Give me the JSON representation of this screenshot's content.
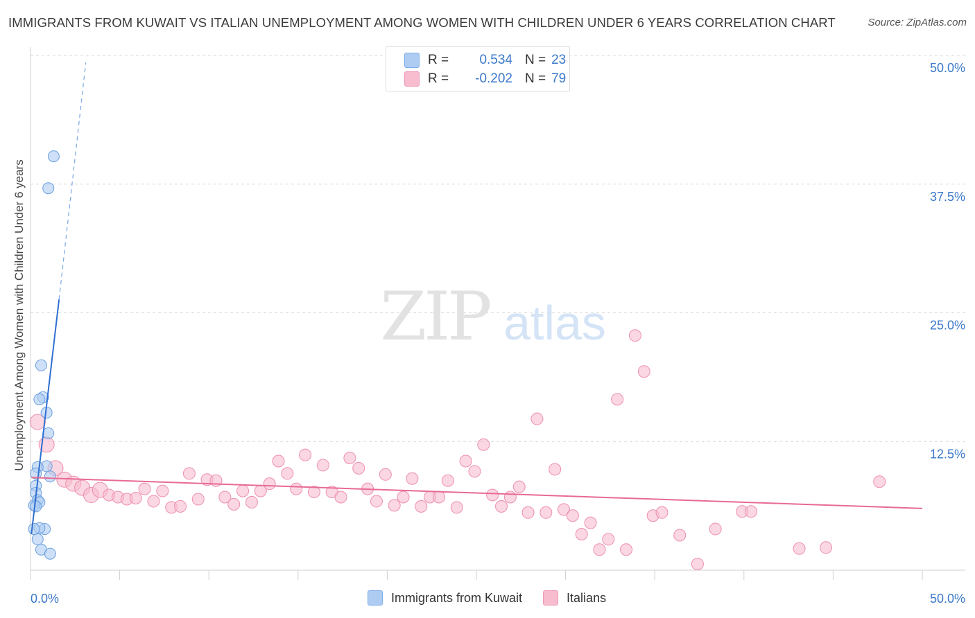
{
  "title": "IMMIGRANTS FROM KUWAIT VS ITALIAN UNEMPLOYMENT AMONG WOMEN WITH CHILDREN UNDER 6 YEARS CORRELATION CHART",
  "source": "Source: ZipAtlas.com",
  "watermark": {
    "zip": "ZIP",
    "atlas": "atlas"
  },
  "legend": {
    "rows": [
      {
        "r_label": "R =",
        "r_value": "0.534",
        "n_label": "N =",
        "n_value": "23",
        "color": "#aecbf2"
      },
      {
        "r_label": "R =",
        "r_value": "-0.202",
        "n_label": "N =",
        "n_value": "79",
        "color": "#f7bcce"
      }
    ]
  },
  "bottom_legend": [
    {
      "label": "Immigrants from Kuwait",
      "color": "#aecbf2"
    },
    {
      "label": "Italians",
      "color": "#f7bcce"
    }
  ],
  "colors": {
    "blue_fill": "#aecbf2",
    "blue_stroke": "#6a9fe0",
    "blue_line": "#2f6fd0",
    "pink_fill": "#f7bcce",
    "pink_stroke": "#ee8fae",
    "pink_line": "#e86a94",
    "tick_text": "#3a78c9",
    "grid": "#d8d8d8"
  },
  "chart_data": {
    "type": "scatter",
    "title": "IMMIGRANTS FROM KUWAIT VS ITALIAN UNEMPLOYMENT AMONG WOMEN WITH CHILDREN UNDER 6 YEARS CORRELATION CHART",
    "xlabel": "",
    "ylabel": "Unemployment Among Women with Children Under 6 years",
    "xlim": [
      0,
      50
    ],
    "ylim": [
      0,
      50
    ],
    "x_tick_labels": [
      "0.0%",
      "50.0%"
    ],
    "y_tick_labels": [
      "12.5%",
      "25.0%",
      "37.5%",
      "50.0%"
    ],
    "y_tick_values": [
      12.5,
      25,
      37.5,
      50
    ],
    "grid": true,
    "legend_position": "top-center",
    "series": [
      {
        "name": "Immigrants from Kuwait",
        "R": 0.534,
        "N": 23,
        "trend": {
          "x0": 0.05,
          "y0": 3.5,
          "x1": 1.6,
          "y1": 26.3,
          "dash_x1": 3.1,
          "dash_y1": 49.3
        },
        "points": [
          [
            1.3,
            40.2
          ],
          [
            1.0,
            37.1
          ],
          [
            0.6,
            19.9
          ],
          [
            0.7,
            16.8
          ],
          [
            0.5,
            16.6
          ],
          [
            0.9,
            15.3
          ],
          [
            1.0,
            13.3
          ],
          [
            0.9,
            10.1
          ],
          [
            0.4,
            10.0
          ],
          [
            1.1,
            9.1
          ],
          [
            0.3,
            9.4
          ],
          [
            0.3,
            8.2
          ],
          [
            0.3,
            7.5
          ],
          [
            0.4,
            6.8
          ],
          [
            0.5,
            6.6
          ],
          [
            0.2,
            6.3
          ],
          [
            0.3,
            6.2
          ],
          [
            0.8,
            4.0
          ],
          [
            0.5,
            4.1
          ],
          [
            0.4,
            3.0
          ],
          [
            0.6,
            2.0
          ],
          [
            1.1,
            1.6
          ],
          [
            0.2,
            4.0
          ]
        ]
      },
      {
        "name": "Italians",
        "R": -0.202,
        "N": 79,
        "trend": {
          "x0": 0.05,
          "y0": 9.0,
          "x1": 50,
          "y1": 6.0
        },
        "points": [
          [
            0.4,
            14.4
          ],
          [
            0.9,
            12.2
          ],
          [
            1.4,
            9.9
          ],
          [
            1.9,
            8.8
          ],
          [
            2.4,
            8.4
          ],
          [
            2.9,
            8.0
          ],
          [
            3.4,
            7.3
          ],
          [
            3.9,
            7.8
          ],
          [
            4.4,
            7.3
          ],
          [
            4.9,
            7.1
          ],
          [
            5.4,
            6.9
          ],
          [
            5.9,
            7.0
          ],
          [
            6.4,
            7.9
          ],
          [
            6.9,
            6.7
          ],
          [
            7.4,
            7.7
          ],
          [
            7.9,
            6.1
          ],
          [
            8.4,
            6.2
          ],
          [
            8.9,
            9.4
          ],
          [
            9.4,
            6.9
          ],
          [
            9.9,
            8.8
          ],
          [
            10.4,
            8.7
          ],
          [
            10.9,
            7.1
          ],
          [
            11.4,
            6.4
          ],
          [
            11.9,
            7.7
          ],
          [
            12.4,
            6.6
          ],
          [
            12.9,
            7.7
          ],
          [
            13.4,
            8.4
          ],
          [
            13.9,
            10.6
          ],
          [
            14.4,
            9.4
          ],
          [
            14.9,
            7.9
          ],
          [
            15.4,
            11.2
          ],
          [
            15.9,
            7.6
          ],
          [
            16.4,
            10.2
          ],
          [
            16.9,
            7.6
          ],
          [
            17.4,
            7.1
          ],
          [
            17.9,
            10.9
          ],
          [
            18.4,
            9.9
          ],
          [
            18.9,
            7.9
          ],
          [
            19.4,
            6.7
          ],
          [
            19.9,
            9.3
          ],
          [
            20.4,
            6.3
          ],
          [
            20.9,
            7.1
          ],
          [
            21.4,
            8.9
          ],
          [
            21.9,
            6.2
          ],
          [
            22.4,
            7.1
          ],
          [
            22.9,
            7.1
          ],
          [
            23.4,
            8.7
          ],
          [
            23.9,
            6.1
          ],
          [
            24.4,
            10.6
          ],
          [
            24.9,
            9.6
          ],
          [
            25.4,
            12.2
          ],
          [
            25.9,
            7.3
          ],
          [
            26.4,
            6.2
          ],
          [
            26.9,
            7.1
          ],
          [
            27.4,
            8.1
          ],
          [
            27.9,
            5.6
          ],
          [
            28.4,
            14.7
          ],
          [
            28.9,
            5.6
          ],
          [
            29.4,
            9.8
          ],
          [
            29.9,
            5.9
          ],
          [
            30.4,
            5.3
          ],
          [
            30.9,
            3.5
          ],
          [
            31.4,
            4.6
          ],
          [
            31.9,
            2.0
          ],
          [
            32.4,
            3.0
          ],
          [
            32.9,
            16.6
          ],
          [
            33.4,
            2.0
          ],
          [
            33.9,
            22.8
          ],
          [
            34.4,
            19.3
          ],
          [
            34.9,
            5.3
          ],
          [
            35.4,
            5.6
          ],
          [
            36.4,
            3.4
          ],
          [
            37.4,
            0.6
          ],
          [
            38.4,
            4.0
          ],
          [
            39.9,
            5.7
          ],
          [
            40.4,
            5.7
          ],
          [
            43.1,
            2.1
          ],
          [
            44.6,
            2.2
          ],
          [
            47.6,
            8.6
          ]
        ]
      }
    ]
  }
}
